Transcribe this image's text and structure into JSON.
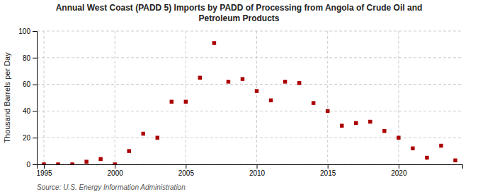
{
  "chart_data": {
    "type": "scatter",
    "title": "Annual West Coast (PADD 5) Imports by PADD of Processing from Angola of Crude Oil and\nPetroleum Products",
    "ylabel": "Thousand Barrels per Day",
    "source": "Source: U.S. Energy Information Administration",
    "x": [
      1995,
      1996,
      1997,
      1998,
      1999,
      2000,
      2001,
      2002,
      2003,
      2004,
      2005,
      2006,
      2007,
      2008,
      2009,
      2010,
      2011,
      2012,
      2013,
      2014,
      2015,
      2016,
      2017,
      2018,
      2019,
      2020,
      2021,
      2022,
      2023,
      2024
    ],
    "values": [
      0,
      0,
      0,
      2,
      4,
      0,
      10,
      23,
      20,
      47,
      47,
      65,
      91,
      62,
      64,
      55,
      48,
      62,
      61,
      46,
      40,
      29,
      31,
      32,
      25,
      20,
      12,
      5,
      14,
      3
    ],
    "color": "#aa0000",
    "marker": "square",
    "xlim": [
      1994.5,
      2024.5
    ],
    "xticks": [
      1995,
      2000,
      2005,
      2010,
      2015,
      2020
    ],
    "ylim": [
      0,
      100
    ],
    "yticks": [
      0,
      20,
      40,
      60,
      80,
      100
    ],
    "grid": true
  }
}
